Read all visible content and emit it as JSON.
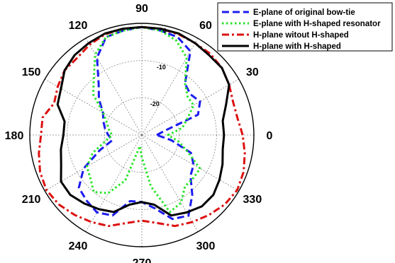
{
  "chart_data": {
    "type": "polar-line",
    "title": "",
    "angle_unit": "deg",
    "angle_ticks": [
      "0",
      "30",
      "60",
      "90",
      "120",
      "150",
      "180",
      "210",
      "240",
      "270",
      "300",
      "330"
    ],
    "radial_ticks": [
      "0",
      "-10",
      "-20"
    ],
    "rlim": [
      -30,
      0
    ],
    "grid": true,
    "legend_position": "top-right",
    "angles": [
      0,
      10,
      20,
      30,
      40,
      50,
      60,
      70,
      80,
      90,
      100,
      110,
      120,
      130,
      140,
      150,
      160,
      170,
      180,
      190,
      200,
      210,
      220,
      230,
      240,
      250,
      260,
      270,
      280,
      290,
      300,
      310,
      320,
      330,
      340,
      350
    ],
    "series": [
      {
        "name": "E-plane of original bow-tie",
        "color": "#1c1cf0",
        "dash": "dashed",
        "values": [
          -26,
          -24,
          -14,
          -12,
          -13,
          -12,
          -4,
          -2,
          -1.5,
          -1,
          -1.5,
          -2,
          -6,
          -12,
          -15,
          -18,
          -19,
          -20,
          -21,
          -22,
          -18,
          -12,
          -8,
          -7,
          -6,
          -7,
          -12,
          -12,
          -10,
          -6,
          -5,
          -9,
          -13,
          -14,
          -16,
          -22
        ]
      },
      {
        "name": "E-plane with H-shaped resonator",
        "color": "#22e622",
        "dash": "dotted",
        "values": [
          -23,
          -19,
          -17,
          -14,
          -14,
          -12,
          -6,
          -3,
          -1.5,
          -1,
          -1.5,
          -2,
          -5,
          -10,
          -13,
          -18,
          -20,
          -21,
          -22,
          -20,
          -16,
          -13,
          -12,
          -10,
          -12,
          -17,
          -27,
          -24,
          -16,
          -8,
          -9,
          -12,
          -12,
          -12,
          -17,
          -20
        ]
      },
      {
        "name": "H-plane witout H-shaped",
        "color": "#dd1111",
        "dash": "dashdot",
        "values": [
          -3,
          -4,
          -4,
          -3,
          -2,
          -1.5,
          -1.5,
          -1.2,
          -1,
          -1,
          -1,
          -1.2,
          -2,
          -3,
          -3,
          -4,
          -5,
          -3,
          -3,
          -2,
          -1,
          -0.5,
          -1,
          -2,
          -3,
          -4,
          -6,
          -7,
          -6,
          -4,
          -3,
          -2,
          -1,
          -0.5,
          -1,
          -2
        ]
      },
      {
        "name": "H-plane with H-shaped",
        "color": "#000000",
        "dash": "solid",
        "values": [
          -8,
          -8,
          -6,
          -3,
          -2,
          -2,
          -1.5,
          -1,
          -1,
          -1,
          -1,
          -1,
          -1.5,
          -2,
          -3,
          -5,
          -6,
          -9,
          -9,
          -8,
          -7,
          -5,
          -5,
          -6,
          -7,
          -8,
          -11,
          -12,
          -11,
          -7,
          -6,
          -5,
          -5,
          -6,
          -7,
          -8
        ]
      }
    ]
  }
}
